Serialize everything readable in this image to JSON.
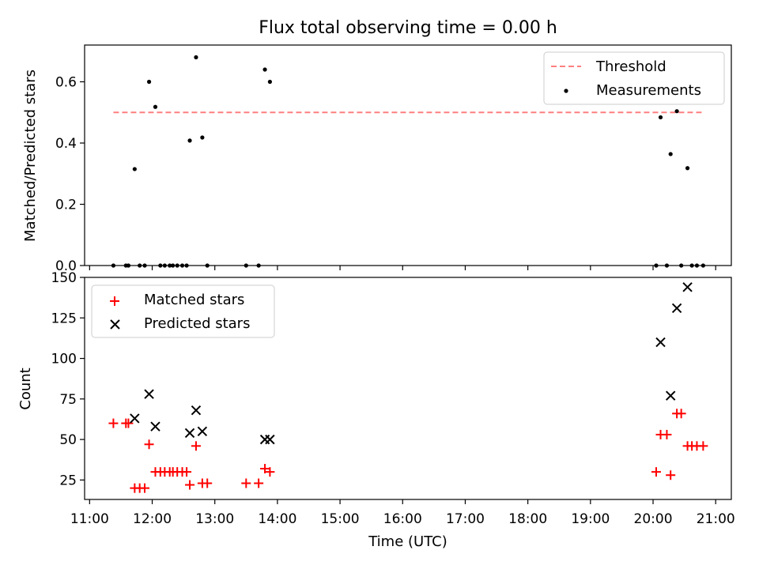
{
  "chart_data": [
    {
      "type": "scatter",
      "title": "Flux total observing time = 0.00 h",
      "ylabel": "Matched/Predicted stars",
      "xlabel": "",
      "xlim": [
        10.92,
        21.25
      ],
      "ylim": [
        0,
        0.72
      ],
      "yticks": [
        0.0,
        0.2,
        0.4,
        0.6
      ],
      "ytick_labels": [
        "0.0",
        "0.2",
        "0.4",
        "0.6"
      ],
      "legend_position": "top-right",
      "threshold": {
        "name": "Threshold",
        "value": 0.5,
        "x_start": 11.38,
        "x_end": 20.8,
        "color": "#ff7f7f"
      },
      "series": [
        {
          "name": "Measurements",
          "color": "#000000",
          "x": [
            11.38,
            11.58,
            11.62,
            11.72,
            11.8,
            11.88,
            11.95,
            12.05,
            12.13,
            12.2,
            12.28,
            12.33,
            12.4,
            12.48,
            12.55,
            12.6,
            12.7,
            12.8,
            12.88,
            13.5,
            13.7,
            13.8,
            13.88,
            20.05,
            20.12,
            20.22,
            20.28,
            20.38,
            20.45,
            20.55,
            20.62,
            20.7,
            20.8
          ],
          "y": [
            0.0,
            0.0,
            0.0,
            0.315,
            0.0,
            0.0,
            0.6,
            0.518,
            0.0,
            0.0,
            0.0,
            0.0,
            0.0,
            0.0,
            0.0,
            0.408,
            0.68,
            0.418,
            0.0,
            0.0,
            0.0,
            0.64,
            0.6,
            0.0,
            0.484,
            0.0,
            0.364,
            0.504,
            0.0,
            0.318,
            0.0,
            0.0,
            0.0
          ]
        }
      ]
    },
    {
      "type": "scatter",
      "title": "",
      "xlabel": "Time (UTC)",
      "ylabel": "Count",
      "xlim": [
        10.92,
        21.25
      ],
      "ylim": [
        13,
        150
      ],
      "yticks": [
        25,
        50,
        75,
        100,
        125,
        150
      ],
      "ytick_labels": [
        "25",
        "50",
        "75",
        "100",
        "125",
        "150"
      ],
      "xticks": [
        11,
        12,
        13,
        14,
        15,
        16,
        17,
        18,
        19,
        20,
        21
      ],
      "xtick_labels": [
        "11:00",
        "12:00",
        "13:00",
        "14:00",
        "15:00",
        "16:00",
        "17:00",
        "18:00",
        "19:00",
        "20:00",
        "21:00"
      ],
      "legend_position": "top-left",
      "series": [
        {
          "name": "Matched stars",
          "marker": "plus",
          "color": "#ff0000",
          "x": [
            11.38,
            11.58,
            11.62,
            11.72,
            11.8,
            11.88,
            11.95,
            12.05,
            12.13,
            12.2,
            12.28,
            12.33,
            12.4,
            12.48,
            12.55,
            12.6,
            12.7,
            12.8,
            12.88,
            13.5,
            13.7,
            13.8,
            13.88,
            20.05,
            20.12,
            20.22,
            20.28,
            20.38,
            20.45,
            20.55,
            20.62,
            20.7,
            20.8
          ],
          "y": [
            60,
            60,
            60,
            20,
            20,
            20,
            47,
            30,
            30,
            30,
            30,
            30,
            30,
            30,
            30,
            22,
            46,
            23,
            23,
            23,
            23,
            32,
            30,
            30,
            53,
            53,
            28,
            66,
            66,
            46,
            46,
            46,
            46
          ]
        },
        {
          "name": "Predicted stars",
          "marker": "x",
          "color": "#000000",
          "x": [
            11.72,
            11.95,
            12.05,
            12.6,
            12.7,
            12.8,
            13.8,
            13.88,
            20.12,
            20.28,
            20.38,
            20.55
          ],
          "y": [
            63,
            78,
            58,
            54,
            68,
            55,
            50,
            50,
            110,
            77,
            131,
            144
          ]
        }
      ]
    }
  ]
}
